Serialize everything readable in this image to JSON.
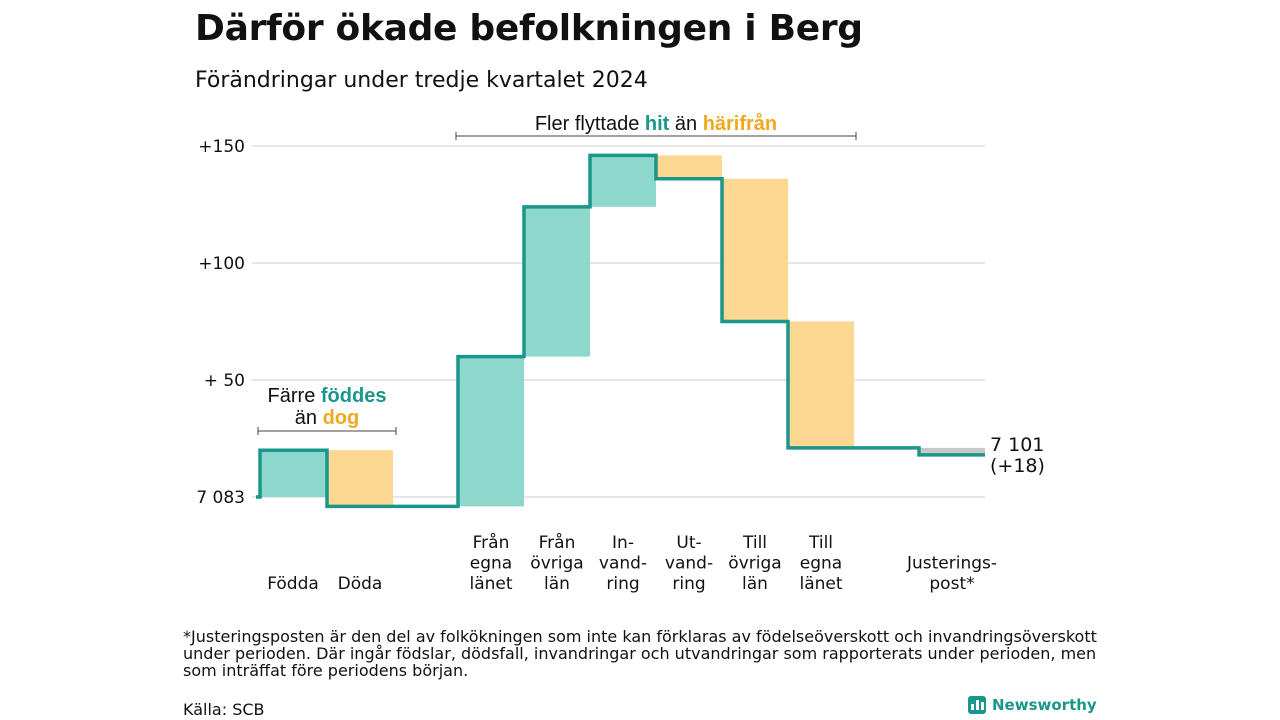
{
  "title": "Därför ökade befolkningen i Berg",
  "subtitle": "Förändringar under tredje kvartalet 2024",
  "annotations": {
    "migration": {
      "prefix": "Fler flyttade",
      "hit": "hit",
      "mid": "än",
      "harifran": "härifrån"
    },
    "births": {
      "prefix": "Färre",
      "foddes": "föddes",
      "mid": "än",
      "dog": "dog"
    }
  },
  "end_label": {
    "value": "7 101",
    "change": "(+18)"
  },
  "footnote": "*Justeringsposten är den del av folkökningen som inte kan förklaras av födelseöverskott och invandringsöverskott under perioden. Där ingår födslar, dödsfall, invandringar och utvandringar som rapporterats under perioden, men som inträffat före periodens början.",
  "source": "Källa: SCB",
  "logo": {
    "text": "Newsworthy",
    "icon": "bar-chart-icon"
  },
  "colors": {
    "increase": "#8dd7cd",
    "decrease": "#fcd791",
    "adjustment": "#c8c8c8",
    "line": "#1b968a",
    "grid": "#dddddd"
  },
  "chart_data": {
    "type": "waterfall",
    "baseline": 7083,
    "y_tick_labels": [
      "7 083",
      "+ 50",
      "+100",
      "+150"
    ],
    "y_ticks": [
      0,
      50,
      100,
      150
    ],
    "ylim": [
      -5,
      150
    ],
    "grid": true,
    "steps": [
      {
        "label": "Födda",
        "lines": [
          "Födda"
        ],
        "start": 0,
        "end": 20,
        "kind": "increase"
      },
      {
        "label": "Döda",
        "lines": [
          "Döda"
        ],
        "start": 20,
        "end": -4,
        "kind": "decrease"
      },
      {
        "label": "Från egna länet",
        "lines": [
          "Från",
          "egna",
          "länet"
        ],
        "start": -4,
        "end": 60,
        "kind": "increase"
      },
      {
        "label": "Från övriga län",
        "lines": [
          "Från",
          "övriga",
          "län"
        ],
        "start": 60,
        "end": 124,
        "kind": "increase"
      },
      {
        "label": "Invandring",
        "lines": [
          "In-",
          "vand-",
          "ring"
        ],
        "start": 124,
        "end": 146,
        "kind": "increase"
      },
      {
        "label": "Utvandring",
        "lines": [
          "Ut-",
          "vand-",
          "ring"
        ],
        "start": 146,
        "end": 136,
        "kind": "decrease"
      },
      {
        "label": "Till övriga län",
        "lines": [
          "Till",
          "övriga",
          "län"
        ],
        "start": 136,
        "end": 75,
        "kind": "decrease"
      },
      {
        "label": "Till egna länet",
        "lines": [
          "Till",
          "egna",
          "länet"
        ],
        "start": 75,
        "end": 21,
        "kind": "decrease"
      },
      {
        "label": "Justeringspost*",
        "lines": [
          "Justerings-",
          "post*"
        ],
        "start": 21,
        "end": 18,
        "kind": "adjustment"
      }
    ],
    "total": 7101,
    "net_change": 18
  }
}
